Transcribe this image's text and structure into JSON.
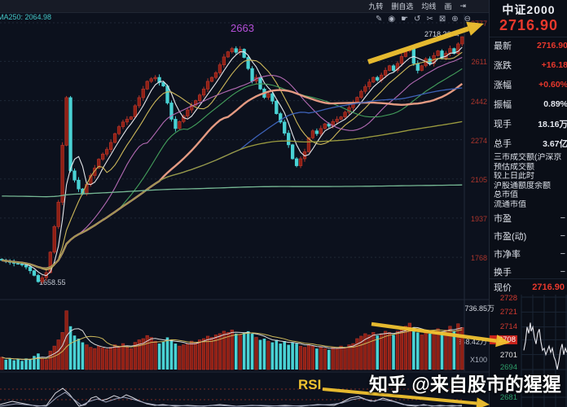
{
  "toolbar": {
    "menu": [
      {
        "name": "menu-nine-turn",
        "label": "九转"
      },
      {
        "name": "menu-remove-watchlist",
        "label": "删自选"
      },
      {
        "name": "menu-moving-average",
        "label": "均线"
      },
      {
        "name": "menu-draw",
        "label": "画"
      },
      {
        "name": "menu-jump",
        "label": "⇥"
      }
    ],
    "icons": [
      {
        "name": "pencil-icon",
        "glyph": "✎"
      },
      {
        "name": "eye-icon",
        "glyph": "◉"
      },
      {
        "name": "hand-pan-icon",
        "glyph": "☛"
      },
      {
        "name": "undo-icon",
        "glyph": "↺"
      },
      {
        "name": "scissors-icon",
        "glyph": "✂"
      },
      {
        "name": "lock-icon",
        "glyph": "⊠"
      },
      {
        "name": "zoom-in-icon",
        "glyph": "⊕"
      },
      {
        "name": "zoom-out-icon",
        "glyph": "⊖"
      }
    ],
    "ma_readout": "MA250: 2064.98"
  },
  "panel": {
    "title": "中证2000",
    "price_big": "2716.90",
    "rows": [
      {
        "label": "最新",
        "value": "2716.90",
        "color": "red"
      },
      {
        "label": "涨跌",
        "value": "+16.18",
        "color": "red"
      },
      {
        "label": "涨幅",
        "value": "+0.60%",
        "color": "red"
      },
      {
        "label": "振幅",
        "value": "0.89%",
        "color": "white"
      },
      {
        "label": "现手",
        "value": "18.16万",
        "color": "white"
      },
      {
        "label": "总手",
        "value": "3.67亿",
        "color": "white"
      }
    ],
    "info_rows": [
      "三市成交额(沪深京",
      "预估成交额",
      "较上日此时",
      "沪股通额度余额",
      "总市值",
      "流通市值"
    ],
    "ratio_rows": [
      {
        "label": "市盈",
        "value": "−"
      },
      {
        "label": "市盈(动)",
        "value": "−"
      },
      {
        "label": "市净率",
        "value": "−"
      },
      {
        "label": "换手",
        "value": "−"
      }
    ],
    "price_row": {
      "label": "现价",
      "value": "2716.90"
    },
    "mini_axis": [
      {
        "text": "2728",
        "color": "#cf3a30",
        "bg": ""
      },
      {
        "text": "2721",
        "color": "#cf3a30",
        "bg": ""
      },
      {
        "text": "2714",
        "color": "#cf3a30",
        "bg": ""
      },
      {
        "text": "2708",
        "color": "#ffffff",
        "bg": "#c8231c"
      },
      {
        "text": "2701",
        "color": "#e4e4e4",
        "bg": ""
      },
      {
        "text": "2694",
        "color": "#2e9e6a",
        "bg": ""
      },
      {
        "text": "2681",
        "color": "#2e9e6a",
        "bg": ""
      }
    ]
  },
  "labels": {
    "low": "1658.55",
    "high": "2718.36 →",
    "peak": "2663",
    "vol_top": "736.85万",
    "vol_mid": "368.42万",
    "vol_unit": "X100"
  },
  "overlays": {
    "watermark": "知乎 @来自股市的猩猩",
    "rsi_label": "RSI"
  },
  "colors": {
    "up_fill": "#8e1f14",
    "up_stroke": "#b5352a",
    "down": "#49d2d4",
    "arrow": "#f1c230",
    "axis_red": "#ab352c",
    "price_red": "#e8382c",
    "grid": "#1f2837",
    "ma5": "#e4e6ea",
    "ma10": "#cdb85a",
    "ma20": "#b36ab3",
    "ma30": "#44a05c",
    "ma40": "#e49a82",
    "ma60": "#3d62b8",
    "ma120": "#9b9b3f",
    "ma250": "#76b894"
  },
  "chart_data": [
    {
      "type": "candlestick",
      "name": "main-daily-kline",
      "title": "中证2000",
      "y_ticks": [
        2777,
        2611,
        2442,
        2274,
        2105,
        1937,
        1768
      ],
      "ylim": [
        1600,
        2800
      ],
      "closes": [
        1755,
        1750,
        1746,
        1742,
        1740,
        1735,
        1726,
        1710,
        1690,
        1663,
        1680,
        1702,
        1790,
        1900,
        2005,
        2250,
        2455,
        2140,
        2100,
        2062,
        2040,
        2082,
        2120,
        2152,
        2190,
        2212,
        2232,
        2262,
        2300,
        2330,
        2350,
        2362,
        2372,
        2420,
        2455,
        2492,
        2525,
        2536,
        2542,
        2520,
        2505,
        2432,
        2362,
        2322,
        2352,
        2376,
        2402,
        2422,
        2442,
        2466,
        2492,
        2525,
        2542,
        2562,
        2596,
        2630,
        2652,
        2666,
        2650,
        2663,
        2628,
        2580,
        2526,
        2542,
        2492,
        2456,
        2472,
        2440,
        2386,
        2350,
        2302,
        2252,
        2192,
        2162,
        2192,
        2222,
        2282,
        2312,
        2300,
        2322,
        2342,
        2332,
        2352,
        2362,
        2372,
        2392,
        2412,
        2432,
        2456,
        2482,
        2502,
        2522,
        2542,
        2530,
        2552,
        2572,
        2592,
        2572,
        2602,
        2632,
        2656,
        2666,
        2602,
        2572,
        2592,
        2622,
        2602,
        2636,
        2656,
        2626,
        2646,
        2666,
        2645,
        2686,
        2716.9
      ],
      "annotations": {
        "low": 1658.55,
        "high": 2718.36,
        "peak_label": "2663",
        "ma250_value": 2064.98
      },
      "ma_lines": [
        "MA5",
        "MA10",
        "MA20",
        "MA30",
        "MA40",
        "MA60",
        "MA120",
        "MA250"
      ]
    },
    {
      "type": "bar",
      "name": "volume",
      "unit": "X100",
      "scale_top": "736.85万",
      "scale_mid": "368.42万",
      "values": [
        0.2,
        0.16,
        0.18,
        0.15,
        0.17,
        0.14,
        0.18,
        0.16,
        0.22,
        0.26,
        0.18,
        0.16,
        0.3,
        0.38,
        0.48,
        0.6,
        0.95,
        0.7,
        0.55,
        0.5,
        0.44,
        0.4,
        0.36,
        0.34,
        0.38,
        0.35,
        0.33,
        0.36,
        0.4,
        0.38,
        0.42,
        0.36,
        0.34,
        0.44,
        0.48,
        0.5,
        0.55,
        0.52,
        0.46,
        0.42,
        0.45,
        0.52,
        0.48,
        0.42,
        0.38,
        0.4,
        0.42,
        0.46,
        0.44,
        0.48,
        0.5,
        0.54,
        0.52,
        0.56,
        0.58,
        0.62,
        0.6,
        0.64,
        0.58,
        0.56,
        0.6,
        0.62,
        0.58,
        0.52,
        0.48,
        0.5,
        0.46,
        0.44,
        0.48,
        0.42,
        0.46,
        0.4,
        0.44,
        0.42,
        0.38,
        0.36,
        0.4,
        0.38,
        0.34,
        0.36,
        0.34,
        0.32,
        0.36,
        0.34,
        0.38,
        0.36,
        0.4,
        0.42,
        0.5,
        0.54,
        0.58,
        0.56,
        0.6,
        0.55,
        0.58,
        0.62,
        0.6,
        0.56,
        0.62,
        0.66,
        0.7,
        0.75,
        0.68,
        0.6,
        0.56,
        0.6,
        0.58,
        0.62,
        0.66,
        0.6,
        0.64,
        0.7,
        0.62,
        0.74,
        0.68
      ]
    },
    {
      "type": "line",
      "name": "RSI",
      "series": [
        {
          "name": "rsi-fast",
          "points": [
            [
              0,
              3
            ],
            [
              15,
              7
            ],
            [
              30,
              4
            ],
            [
              45,
              1
            ],
            [
              57,
              2
            ],
            [
              68,
              17
            ],
            [
              77,
              23
            ],
            [
              85,
              16
            ],
            [
              97,
              1
            ],
            [
              105,
              3
            ],
            [
              112,
              11
            ],
            [
              118,
              13
            ],
            [
              125,
              8
            ],
            [
              132,
              10
            ],
            [
              140,
              14
            ],
            [
              148,
              11
            ],
            [
              155,
              15
            ],
            [
              162,
              12
            ],
            [
              170,
              8
            ],
            [
              180,
              4
            ],
            [
              190,
              2
            ],
            [
              200,
              3
            ],
            [
              215,
              1
            ],
            [
              230,
              2
            ],
            [
              250,
              1
            ],
            [
              270,
              3
            ],
            [
              290,
              1
            ],
            [
              310,
              2
            ],
            [
              330,
              1
            ],
            [
              350,
              2
            ],
            [
              370,
              1
            ],
            [
              390,
              3
            ],
            [
              410,
              2
            ],
            [
              420,
              6
            ],
            [
              430,
              11
            ],
            [
              440,
              13
            ],
            [
              450,
              9
            ],
            [
              460,
              7
            ],
            [
              470,
              11
            ],
            [
              480,
              8
            ],
            [
              490,
              5
            ],
            [
              500,
              2
            ],
            [
              510,
              1
            ],
            [
              520,
              3
            ],
            [
              530,
              1
            ],
            [
              540,
              2
            ],
            [
              555,
              1
            ],
            [
              567,
              2
            ]
          ]
        },
        {
          "name": "rsi-slow",
          "points": [
            [
              0,
              1
            ],
            [
              20,
              4
            ],
            [
              40,
              2
            ],
            [
              57,
              1
            ],
            [
              70,
              12
            ],
            [
              80,
              18
            ],
            [
              90,
              10
            ],
            [
              100,
              2
            ],
            [
              110,
              7
            ],
            [
              120,
              10
            ],
            [
              130,
              6
            ],
            [
              142,
              10
            ],
            [
              152,
              12
            ],
            [
              165,
              9
            ],
            [
              178,
              5
            ],
            [
              195,
              2
            ],
            [
              215,
              2
            ],
            [
              240,
              1
            ],
            [
              265,
              2
            ],
            [
              290,
              1
            ],
            [
              320,
              2
            ],
            [
              350,
              1
            ],
            [
              380,
              2
            ],
            [
              405,
              3
            ],
            [
              420,
              5
            ],
            [
              432,
              9
            ],
            [
              443,
              11
            ],
            [
              455,
              7
            ],
            [
              468,
              9
            ],
            [
              482,
              7
            ],
            [
              495,
              3
            ],
            [
              510,
              2
            ],
            [
              525,
              2
            ],
            [
              540,
              1
            ],
            [
              555,
              2
            ],
            [
              567,
              1
            ]
          ]
        }
      ]
    },
    {
      "type": "line",
      "name": "intraday-mini",
      "y_ticks": [
        2728,
        2721,
        2714,
        2708,
        2701,
        2694,
        2681
      ],
      "points": [
        [
          643,
          2703
        ],
        [
          645,
          2707
        ],
        [
          647,
          2714
        ],
        [
          649,
          2711
        ],
        [
          651,
          2716
        ],
        [
          652,
          2712
        ],
        [
          654,
          2714
        ],
        [
          656,
          2709
        ],
        [
          658,
          2706
        ],
        [
          660,
          2711
        ],
        [
          662,
          2713
        ],
        [
          664,
          2707
        ],
        [
          666,
          2703
        ],
        [
          668,
          2704
        ],
        [
          670,
          2701
        ],
        [
          672,
          2703
        ],
        [
          674,
          2705
        ],
        [
          676,
          2702
        ],
        [
          678,
          2704
        ],
        [
          680,
          2700
        ],
        [
          682,
          2698
        ],
        [
          684,
          2694
        ],
        [
          686,
          2698
        ],
        [
          688,
          2703
        ],
        [
          690,
          2706
        ],
        [
          692,
          2701
        ],
        [
          694,
          2704
        ],
        [
          696,
          2702
        ]
      ]
    }
  ]
}
